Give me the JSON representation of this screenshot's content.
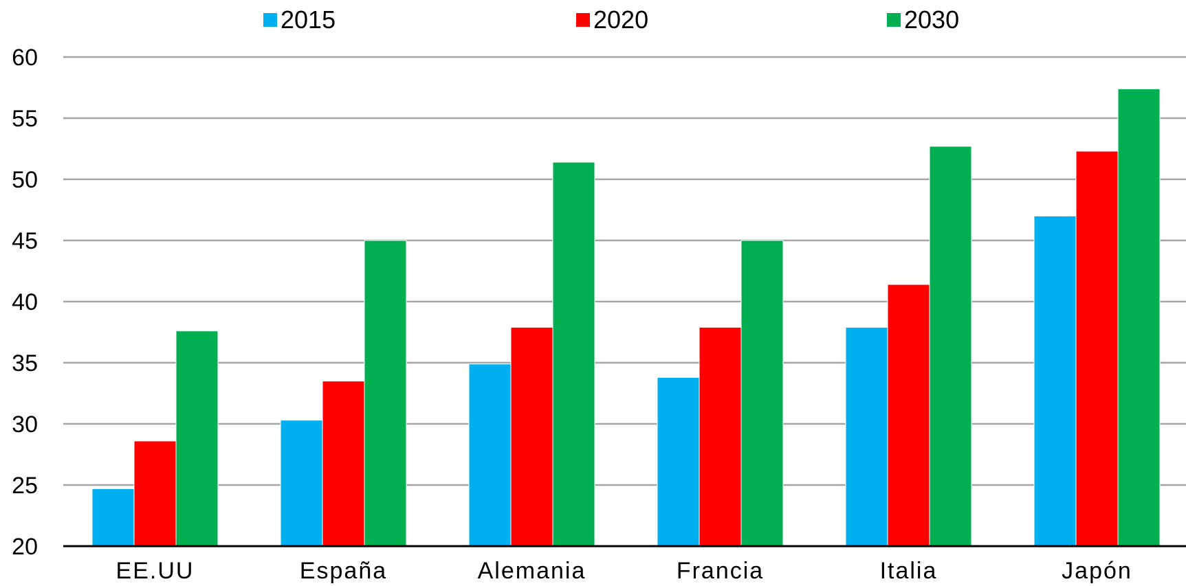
{
  "chart_data": {
    "type": "bar",
    "categories": [
      "EE.UU",
      "España",
      "Alemania",
      "Francia",
      "Italia",
      "Japón"
    ],
    "series": [
      {
        "name": "2015",
        "color": "#00B0F0",
        "values": [
          24.7,
          30.3,
          34.9,
          33.8,
          37.9,
          47.0
        ]
      },
      {
        "name": "2020",
        "color": "#FF0000",
        "values": [
          28.6,
          33.5,
          37.9,
          37.9,
          41.4,
          52.3
        ]
      },
      {
        "name": "2030",
        "color": "#00B050",
        "values": [
          37.6,
          45.0,
          51.4,
          45.0,
          52.7,
          57.4
        ]
      }
    ],
    "ylim": [
      20,
      60
    ],
    "yticks": [
      "20",
      "25",
      "30",
      "35",
      "40",
      "45",
      "50",
      "55",
      "60"
    ],
    "grid": true,
    "legend_position": "top",
    "title": "",
    "xlabel": "",
    "ylabel": ""
  }
}
